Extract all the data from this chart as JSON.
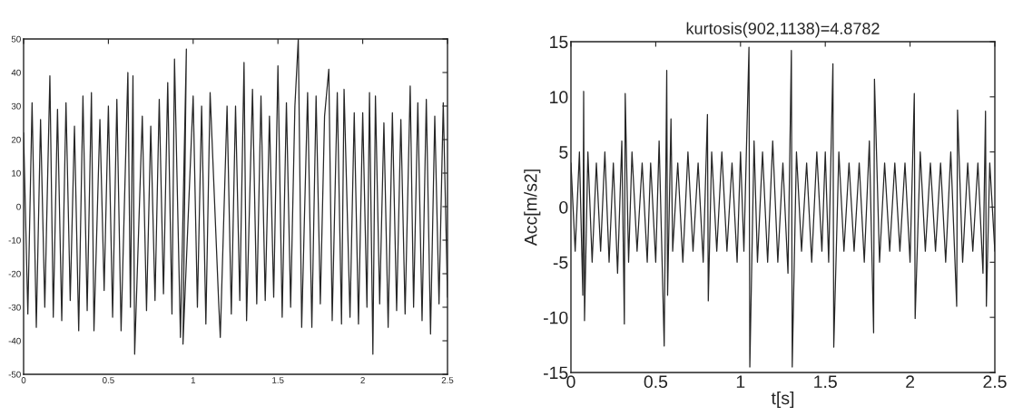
{
  "chart_data": [
    {
      "type": "line",
      "xlim": [
        0,
        2.5
      ],
      "ylim": [
        -50,
        50
      ],
      "xticks": [
        0,
        0.5,
        1,
        1.5,
        2,
        2.5
      ],
      "yticks": [
        -50,
        -40,
        -30,
        -20,
        -10,
        0,
        10,
        20,
        30,
        40,
        50
      ],
      "grid": false,
      "series": [
        {
          "color": "#262626",
          "x": [
            0,
            0.025,
            0.05,
            0.075,
            0.1,
            0.125,
            0.155,
            0.175,
            0.2,
            0.225,
            0.25,
            0.275,
            0.3,
            0.325,
            0.35,
            0.375,
            0.4,
            0.415,
            0.45,
            0.475,
            0.5,
            0.525,
            0.55,
            0.575,
            0.615,
            0.63,
            0.645,
            0.655,
            0.7,
            0.725,
            0.75,
            0.775,
            0.8,
            0.825,
            0.85,
            0.875,
            0.89,
            0.925,
            0.96,
            0.94,
            1.0,
            1.025,
            1.05,
            1.075,
            1.1,
            1.15,
            1.16,
            1.2,
            1.225,
            1.25,
            1.275,
            1.3,
            1.315,
            1.35,
            1.375,
            1.4,
            1.425,
            1.45,
            1.475,
            1.5,
            1.525,
            1.55,
            1.575,
            1.6,
            1.62,
            1.64,
            1.675,
            1.7,
            1.725,
            1.75,
            1.775,
            1.8,
            1.82,
            1.85,
            1.875,
            1.89,
            1.925,
            1.95,
            1.975,
            2.0,
            2.025,
            2.04,
            2.06,
            2.075,
            2.1,
            2.125,
            2.15,
            2.175,
            2.2,
            2.225,
            2.25,
            2.28,
            2.3,
            2.325,
            2.35,
            2.375,
            2.4,
            2.425,
            2.45,
            2.475,
            2.5
          ],
          "values": [
            22,
            -32,
            31,
            -36,
            26,
            -30,
            39,
            -33,
            29,
            -34,
            31,
            -28,
            24,
            -37,
            33,
            -31,
            34,
            -37,
            26,
            -25,
            30,
            -33,
            32,
            -37,
            40,
            -30,
            39,
            -44,
            27,
            -31,
            24,
            -28,
            32,
            -26,
            37,
            -32,
            44,
            -39,
            47,
            -41,
            33,
            -30,
            30,
            -35,
            34,
            -28,
            -39,
            30,
            -32,
            30,
            -28,
            43,
            -34,
            35,
            -29,
            33,
            -28,
            27,
            -27,
            42,
            -33,
            31,
            -30,
            30,
            50,
            -36,
            34,
            -36,
            33,
            -29,
            27,
            41,
            -34,
            34,
            -35,
            35,
            -33,
            28,
            -35,
            28,
            -30,
            34,
            -44,
            33,
            -29,
            25,
            -36,
            28,
            -31,
            26,
            -32,
            36,
            -30,
            31,
            -34,
            32,
            -38,
            27,
            -29,
            31,
            -27
          ]
        }
      ]
    },
    {
      "type": "line",
      "title": "kurtosis(902,1138)=4.8782",
      "xlabel": "t[s]",
      "ylabel": "Acc[m/s2]",
      "xlim": [
        0,
        2.5
      ],
      "ylim": [
        -15,
        15
      ],
      "xticks": [
        0,
        0.5,
        1,
        1.5,
        2,
        2.5
      ],
      "yticks": [
        -15,
        -10,
        -5,
        0,
        5,
        10,
        15
      ],
      "grid": false,
      "series": [
        {
          "color": "#262626",
          "x": [
            0,
            0.025,
            0.05,
            0.07,
            0.075,
            0.08,
            0.1,
            0.125,
            0.15,
            0.175,
            0.2,
            0.225,
            0.25,
            0.275,
            0.3,
            0.315,
            0.32,
            0.34,
            0.36,
            0.39,
            0.42,
            0.45,
            0.47,
            0.5,
            0.52,
            0.55,
            0.565,
            0.57,
            0.59,
            0.6,
            0.63,
            0.66,
            0.69,
            0.72,
            0.75,
            0.78,
            0.805,
            0.81,
            0.83,
            0.86,
            0.89,
            0.92,
            0.95,
            0.98,
            1.0,
            1.02,
            1.05,
            1.055,
            1.08,
            1.1,
            1.13,
            1.16,
            1.19,
            1.22,
            1.25,
            1.28,
            1.3,
            1.305,
            1.33,
            1.36,
            1.39,
            1.42,
            1.45,
            1.48,
            1.5,
            1.52,
            1.545,
            1.55,
            1.58,
            1.61,
            1.64,
            1.67,
            1.7,
            1.73,
            1.76,
            1.785,
            1.79,
            1.82,
            1.85,
            1.88,
            1.91,
            1.94,
            1.97,
            2.0,
            2.025,
            2.03,
            2.06,
            2.09,
            2.12,
            2.15,
            2.18,
            2.21,
            2.24,
            2.275,
            2.28,
            2.31,
            2.34,
            2.37,
            2.4,
            2.43,
            2.445,
            2.45,
            2.47,
            2.5
          ],
          "values": [
            4,
            -4,
            5,
            -8,
            10.5,
            -10.3,
            5,
            -5,
            4,
            -4,
            5,
            -5,
            4,
            -6,
            6,
            -10.6,
            10.3,
            -5,
            5,
            -4,
            4,
            -5,
            4,
            -5,
            6,
            -12.6,
            12.4,
            -8,
            8,
            -4,
            4,
            -5,
            5,
            -4,
            4,
            -5,
            8.4,
            -8.5,
            5,
            -4,
            5,
            -4,
            4,
            -5,
            5,
            -4,
            14.5,
            -14.5,
            6,
            -5,
            5,
            -5,
            6,
            -5,
            4,
            -6,
            14.2,
            -14.5,
            5,
            -4,
            4,
            -5,
            5,
            -4,
            5,
            -5,
            13,
            -12.7,
            5,
            -4,
            4,
            -4,
            4,
            -5,
            6,
            -11.4,
            11.6,
            -5,
            4,
            -4,
            4,
            -4,
            4,
            -5,
            10.3,
            -10.1,
            5,
            -4,
            4,
            -4,
            4,
            -5,
            5,
            -9,
            8.8,
            -5,
            4,
            -4,
            4,
            -6,
            8.7,
            -9,
            4,
            -4
          ]
        }
      ]
    }
  ]
}
